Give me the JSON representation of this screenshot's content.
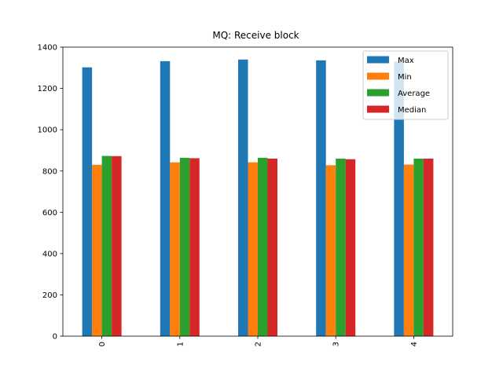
{
  "chart_data": {
    "type": "bar",
    "title": "MQ: Receive block",
    "xlabel": "",
    "ylabel": "",
    "categories": [
      "0",
      "1",
      "2",
      "3",
      "4"
    ],
    "series": [
      {
        "name": "Max",
        "color": "#1f77b4",
        "values": [
          1302,
          1332,
          1340,
          1336,
          1330
        ]
      },
      {
        "name": "Min",
        "color": "#ff7f0e",
        "values": [
          830,
          842,
          842,
          828,
          831
        ]
      },
      {
        "name": "Average",
        "color": "#2ca02c",
        "values": [
          873,
          864,
          864,
          860,
          860
        ]
      },
      {
        "name": "Median",
        "color": "#d62728",
        "values": [
          872,
          862,
          860,
          857,
          860
        ]
      }
    ],
    "ylim": [
      0,
      1400
    ],
    "yticks": [
      0,
      200,
      400,
      600,
      800,
      1000,
      1200,
      1400
    ],
    "grid": false,
    "legend_position": "top-right",
    "xtick_rotation": 90
  }
}
